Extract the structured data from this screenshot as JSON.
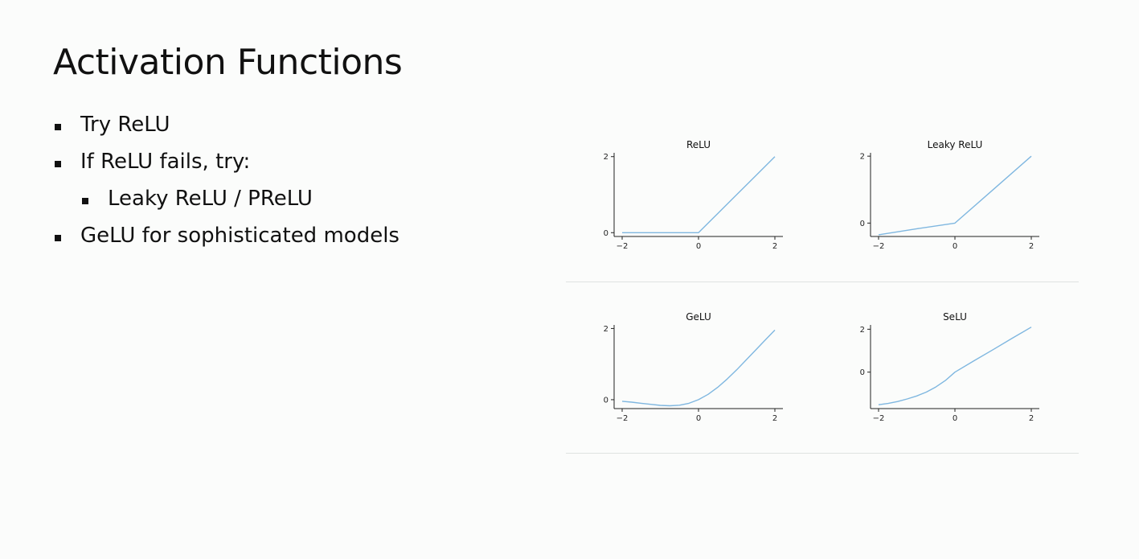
{
  "slide": {
    "title": "Activation Functions",
    "bullets": [
      {
        "text": "Try ReLU",
        "level": 1
      },
      {
        "text": "If ReLU fails, try:",
        "level": 1
      },
      {
        "text": "Leaky ReLU / PReLU",
        "level": 2
      },
      {
        "text": "GeLU for sophisticated models",
        "level": 1
      }
    ]
  },
  "chart_data": [
    {
      "type": "line",
      "title": "ReLU",
      "xlim": [
        -2,
        2
      ],
      "ylim": [
        -0.1,
        2.1
      ],
      "xticks": [
        -2,
        0,
        2
      ],
      "xtick_labels": [
        "−2",
        "0",
        "2"
      ],
      "yticks": [
        0,
        2
      ],
      "ytick_labels": [
        "0",
        "2"
      ],
      "grid": false,
      "line_color": "#7fb7e0",
      "x": [
        -2,
        -1.5,
        -1,
        -0.5,
        0,
        0.5,
        1,
        1.5,
        2
      ],
      "y": [
        0,
        0,
        0,
        0,
        0,
        0.5,
        1,
        1.5,
        2
      ]
    },
    {
      "type": "line",
      "title": "Leaky ReLU",
      "xlim": [
        -2,
        2
      ],
      "ylim": [
        -0.4,
        2.1
      ],
      "xticks": [
        -2,
        0,
        2
      ],
      "xtick_labels": [
        "−2",
        "0",
        "2"
      ],
      "yticks": [
        0,
        2
      ],
      "ytick_labels": [
        "0",
        "2"
      ],
      "grid": false,
      "line_color": "#7fb7e0",
      "x": [
        -2,
        -1,
        0,
        1,
        2
      ],
      "y": [
        -0.35,
        -0.17,
        0,
        1,
        2
      ]
    },
    {
      "type": "line",
      "title": "GeLU",
      "xlim": [
        -2,
        2
      ],
      "ylim": [
        -0.25,
        2.1
      ],
      "xticks": [
        -2,
        0,
        2
      ],
      "xtick_labels": [
        "−2",
        "0",
        "2"
      ],
      "yticks": [
        0,
        2
      ],
      "ytick_labels": [
        "0",
        "2"
      ],
      "grid": false,
      "line_color": "#7fb7e0",
      "x": [
        -2,
        -1.75,
        -1.5,
        -1.25,
        -1,
        -0.75,
        -0.5,
        -0.25,
        0,
        0.25,
        0.5,
        0.75,
        1,
        1.25,
        1.5,
        1.75,
        2
      ],
      "y": [
        -0.045,
        -0.07,
        -0.1,
        -0.13,
        -0.16,
        -0.17,
        -0.154,
        -0.1,
        0,
        0.15,
        0.346,
        0.58,
        0.84,
        1.12,
        1.4,
        1.68,
        1.955
      ]
    },
    {
      "type": "line",
      "title": "SeLU",
      "xlim": [
        -2,
        2
      ],
      "ylim": [
        -1.7,
        2.2
      ],
      "xticks": [
        -2,
        0,
        2
      ],
      "xtick_labels": [
        "−2",
        "0",
        "2"
      ],
      "yticks": [
        0,
        2
      ],
      "ytick_labels": [
        "0",
        "2"
      ],
      "grid": false,
      "line_color": "#7fb7e0",
      "x": [
        -2,
        -1.75,
        -1.5,
        -1.25,
        -1,
        -0.75,
        -0.5,
        -0.25,
        0,
        0.5,
        1,
        1.5,
        2
      ],
      "y": [
        -1.52,
        -1.46,
        -1.37,
        -1.25,
        -1.11,
        -0.93,
        -0.69,
        -0.39,
        0,
        0.53,
        1.05,
        1.58,
        2.1
      ]
    }
  ]
}
